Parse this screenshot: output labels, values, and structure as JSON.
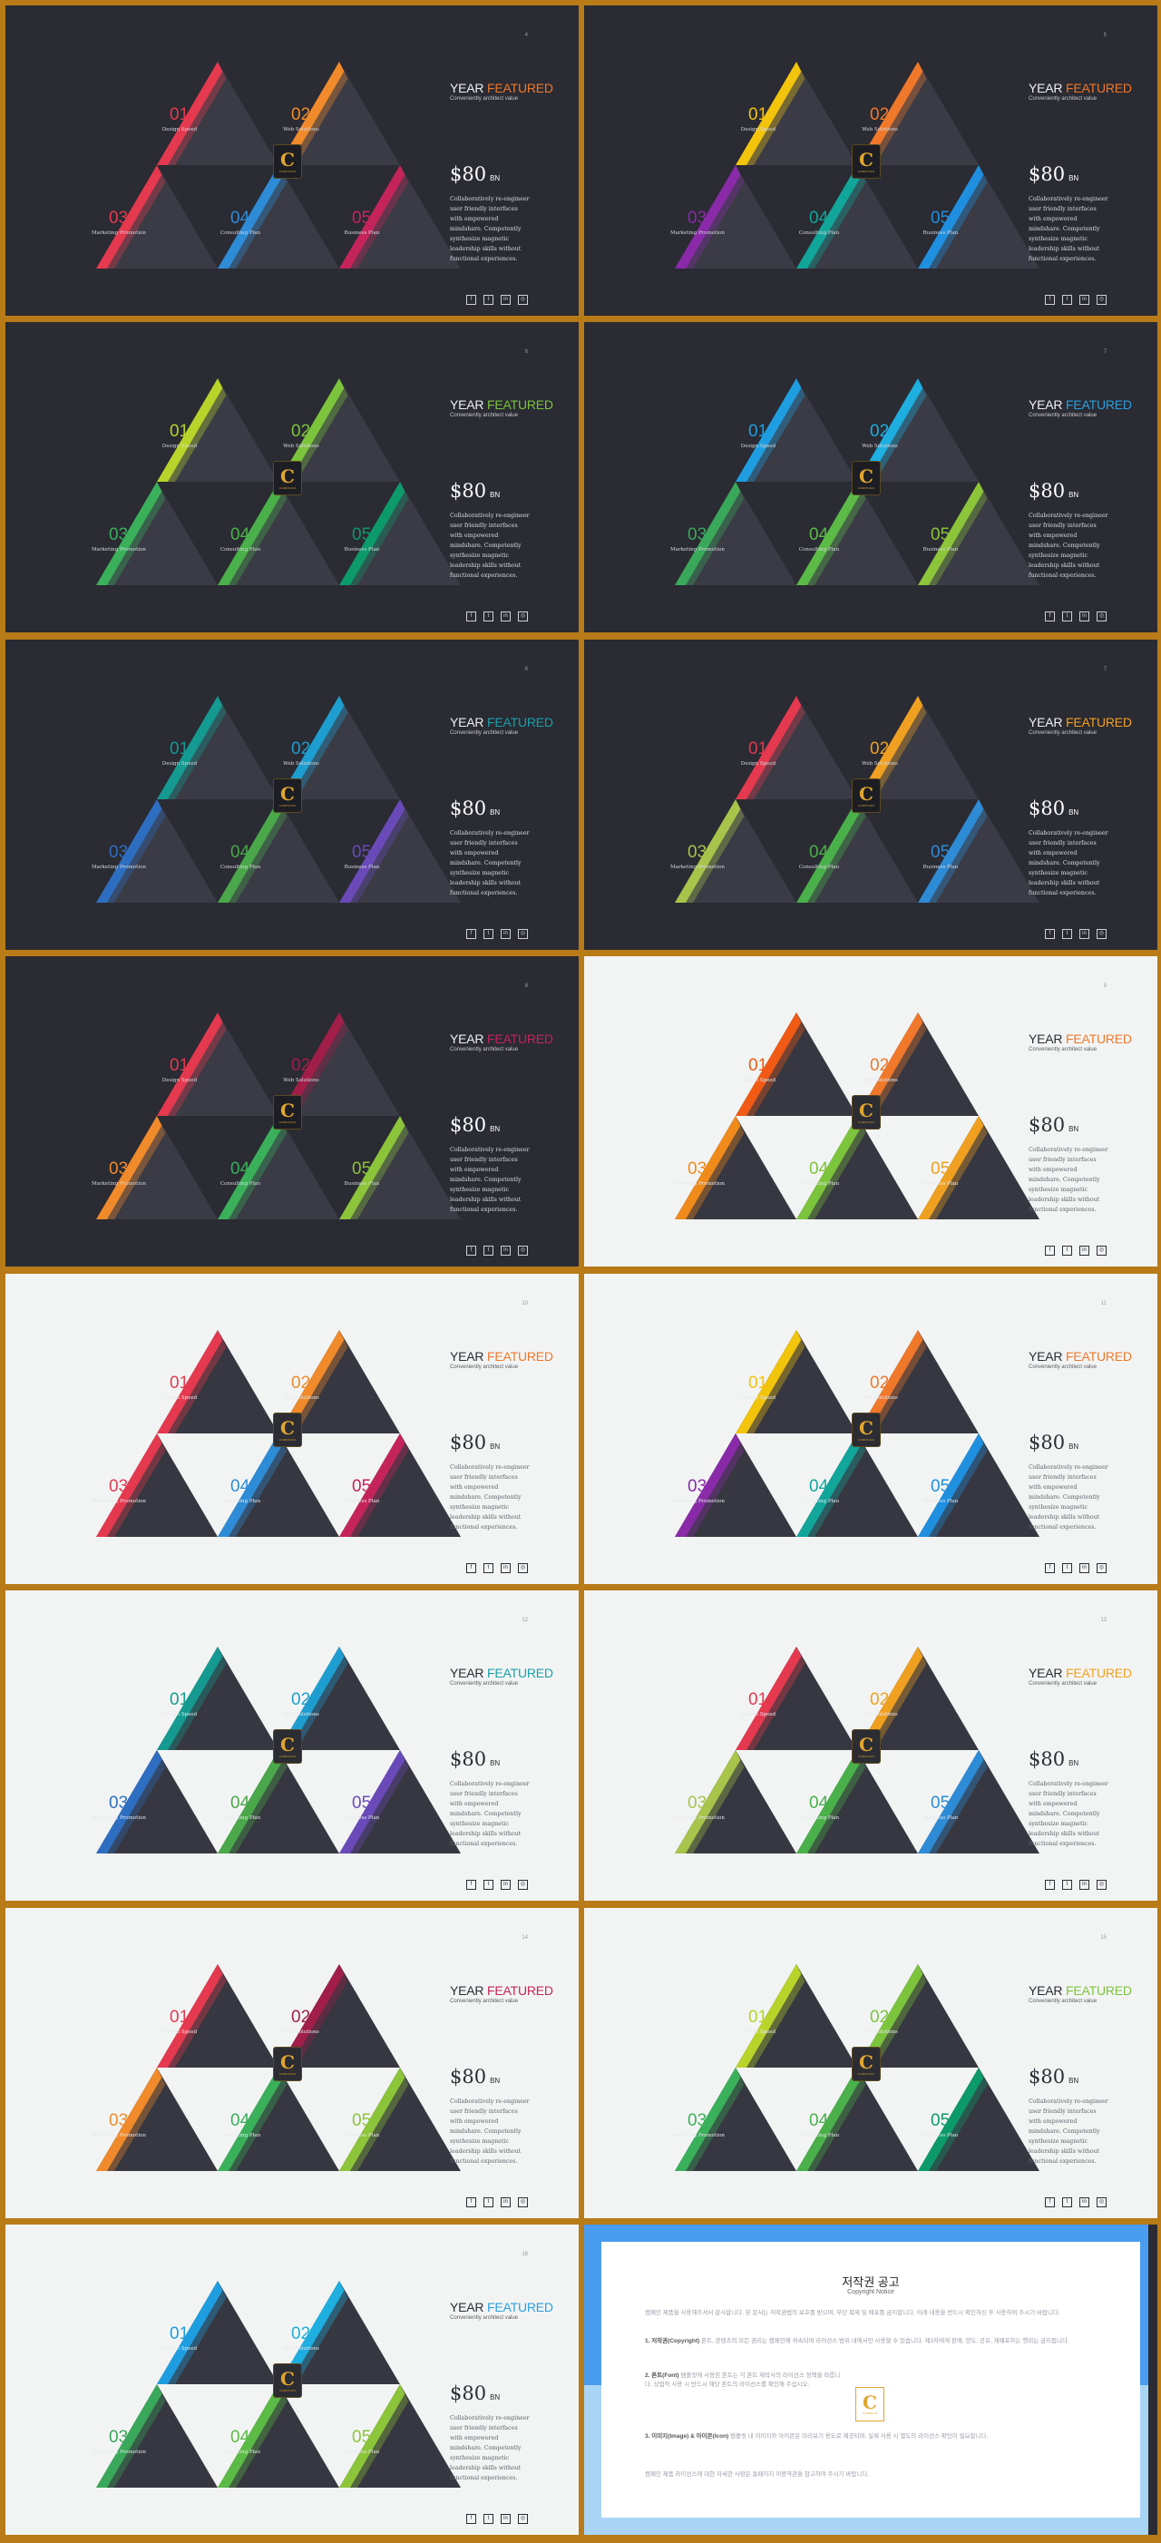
{
  "common": {
    "title_a": "YEAR",
    "title_b": "FEATURED",
    "subtitle": "Conveniently architect value",
    "price": "$80",
    "price_unit": "BN",
    "body": "Collaboratively re-engineer user friendly interfaces with empowered mindshare. Competently synthesize magnetic leadership skills without functional experiences.",
    "items": [
      {
        "num": "01",
        "label": "Design Speed"
      },
      {
        "num": "02",
        "label": "Web Solutions"
      },
      {
        "num": "03",
        "label": "Marketing Promotion"
      },
      {
        "num": "04",
        "label": "Consulting Plan"
      },
      {
        "num": "05",
        "label": "Business Plan"
      }
    ],
    "social_icons": [
      "facebook-icon",
      "twitter-icon",
      "linkedin-icon",
      "instagram-icon"
    ],
    "social_glyphs": [
      "f",
      "t",
      "in",
      "◎"
    ],
    "logo_letter": "C",
    "logo_word": "CAMPAIGN"
  },
  "slides": [
    {
      "page": "4",
      "theme": "dark",
      "accent": "#f0782a",
      "colors": [
        "#e4394e",
        "#f08a2a",
        "#e4394e",
        "#2e8bd6",
        "#c4245a"
      ]
    },
    {
      "page": "5",
      "theme": "dark",
      "accent": "#f0782a",
      "colors": [
        "#f2c40c",
        "#f0782a",
        "#8a2aa8",
        "#12a59a",
        "#1f8fe0"
      ]
    },
    {
      "page": "6",
      "theme": "dark",
      "accent": "#7cc43c",
      "colors": [
        "#b8d42a",
        "#7cc43c",
        "#3ab05a",
        "#4ab04a",
        "#0d9a6a"
      ]
    },
    {
      "page": "7",
      "theme": "dark",
      "accent": "#2aa0e0",
      "colors": [
        "#1e9ee0",
        "#1eaee0",
        "#3aa85a",
        "#5cba46",
        "#8cc43a"
      ]
    },
    {
      "page": "8",
      "theme": "dark",
      "accent": "#18a0a8",
      "colors": [
        "#149a90",
        "#1e9ed0",
        "#2e6ec0",
        "#4aa84a",
        "#6a4ab8"
      ]
    },
    {
      "page": "7",
      "theme": "dark",
      "accent": "#f0a020",
      "colors": [
        "#e4394e",
        "#f0a020",
        "#a8c44a",
        "#4ab04a",
        "#2e8bd6"
      ]
    },
    {
      "page": "8",
      "theme": "dark",
      "accent": "#c4245a",
      "colors": [
        "#e4394e",
        "#a01e48",
        "#f08a2a",
        "#3ab05a",
        "#8cc43a"
      ]
    },
    {
      "page": "9",
      "theme": "light",
      "accent": "#f0782a",
      "colors": [
        "#f05a14",
        "#f0782a",
        "#f08a1a",
        "#7cc43c",
        "#f0a020"
      ]
    },
    {
      "page": "10",
      "theme": "light",
      "accent": "#f0782a",
      "colors": [
        "#e4394e",
        "#f08a2a",
        "#e4394e",
        "#2e8bd6",
        "#c4245a"
      ]
    },
    {
      "page": "11",
      "theme": "light",
      "accent": "#f0782a",
      "colors": [
        "#f2c40c",
        "#f0782a",
        "#8a2aa8",
        "#12a59a",
        "#1f8fe0"
      ]
    },
    {
      "page": "12",
      "theme": "light",
      "accent": "#18a0a8",
      "colors": [
        "#149a90",
        "#1e9ed0",
        "#2e6ec0",
        "#4aa84a",
        "#6a4ab8"
      ]
    },
    {
      "page": "13",
      "theme": "light",
      "accent": "#f0a020",
      "colors": [
        "#e4394e",
        "#f0a020",
        "#a8c44a",
        "#4ab04a",
        "#2e8bd6"
      ]
    },
    {
      "page": "14",
      "theme": "light",
      "accent": "#c4245a",
      "colors": [
        "#e4394e",
        "#a01e48",
        "#f08a2a",
        "#3ab05a",
        "#8cc43a"
      ]
    },
    {
      "page": "15",
      "theme": "light",
      "accent": "#7cc43c",
      "colors": [
        "#b8d42a",
        "#7cc43c",
        "#3ab05a",
        "#4ab04a",
        "#0d9a6a"
      ]
    },
    {
      "page": "16",
      "theme": "light",
      "accent": "#2aa0e0",
      "colors": [
        "#1e9ee0",
        "#1eaee0",
        "#3aa85a",
        "#5cba46",
        "#8cc43a"
      ]
    }
  ],
  "copyright": {
    "title": "저작권 공고",
    "subtitle": "Copyright Notice",
    "intro": "캠페인 제품을 사용해주셔서 감사합니다. 본 문서는 저작권법의 보호를 받으며, 무단 복제 및 배포를 금지합니다. 아래 내용을 반드시 확인하신 후 사용하여 주시기 바랍니다.",
    "p1_head": "1. 저작권(Copyright)",
    "p1": "폰트, 콘텐츠의 모든 권리는 캠페인에 귀속되며 라이선스 범위 내에서만 사용할 수 있습니다. 제3자에게 판매, 양도, 공유, 재배포하는 행위는 금지됩니다.",
    "p2_head": "2. 폰트(Font)",
    "p2": "템플릿에 사용된 폰트는 각 폰트 제작사의 라이선스 정책을 따릅니다. 상업적 사용 시 반드시 해당 폰트의 라이선스를 확인해 주십시오.",
    "p3_head": "3. 이미지(Image) & 아이콘(Icon)",
    "p3": "템플릿 내 이미지와 아이콘은 미리보기 용도로 제공되며, 실제 사용 시 별도의 라이선스 확인이 필요합니다.",
    "outro": "캠페인 제품 라이선스에 대한 자세한 사항은 홈페이지 이용약관을 참고하여 주시기 바랍니다."
  }
}
